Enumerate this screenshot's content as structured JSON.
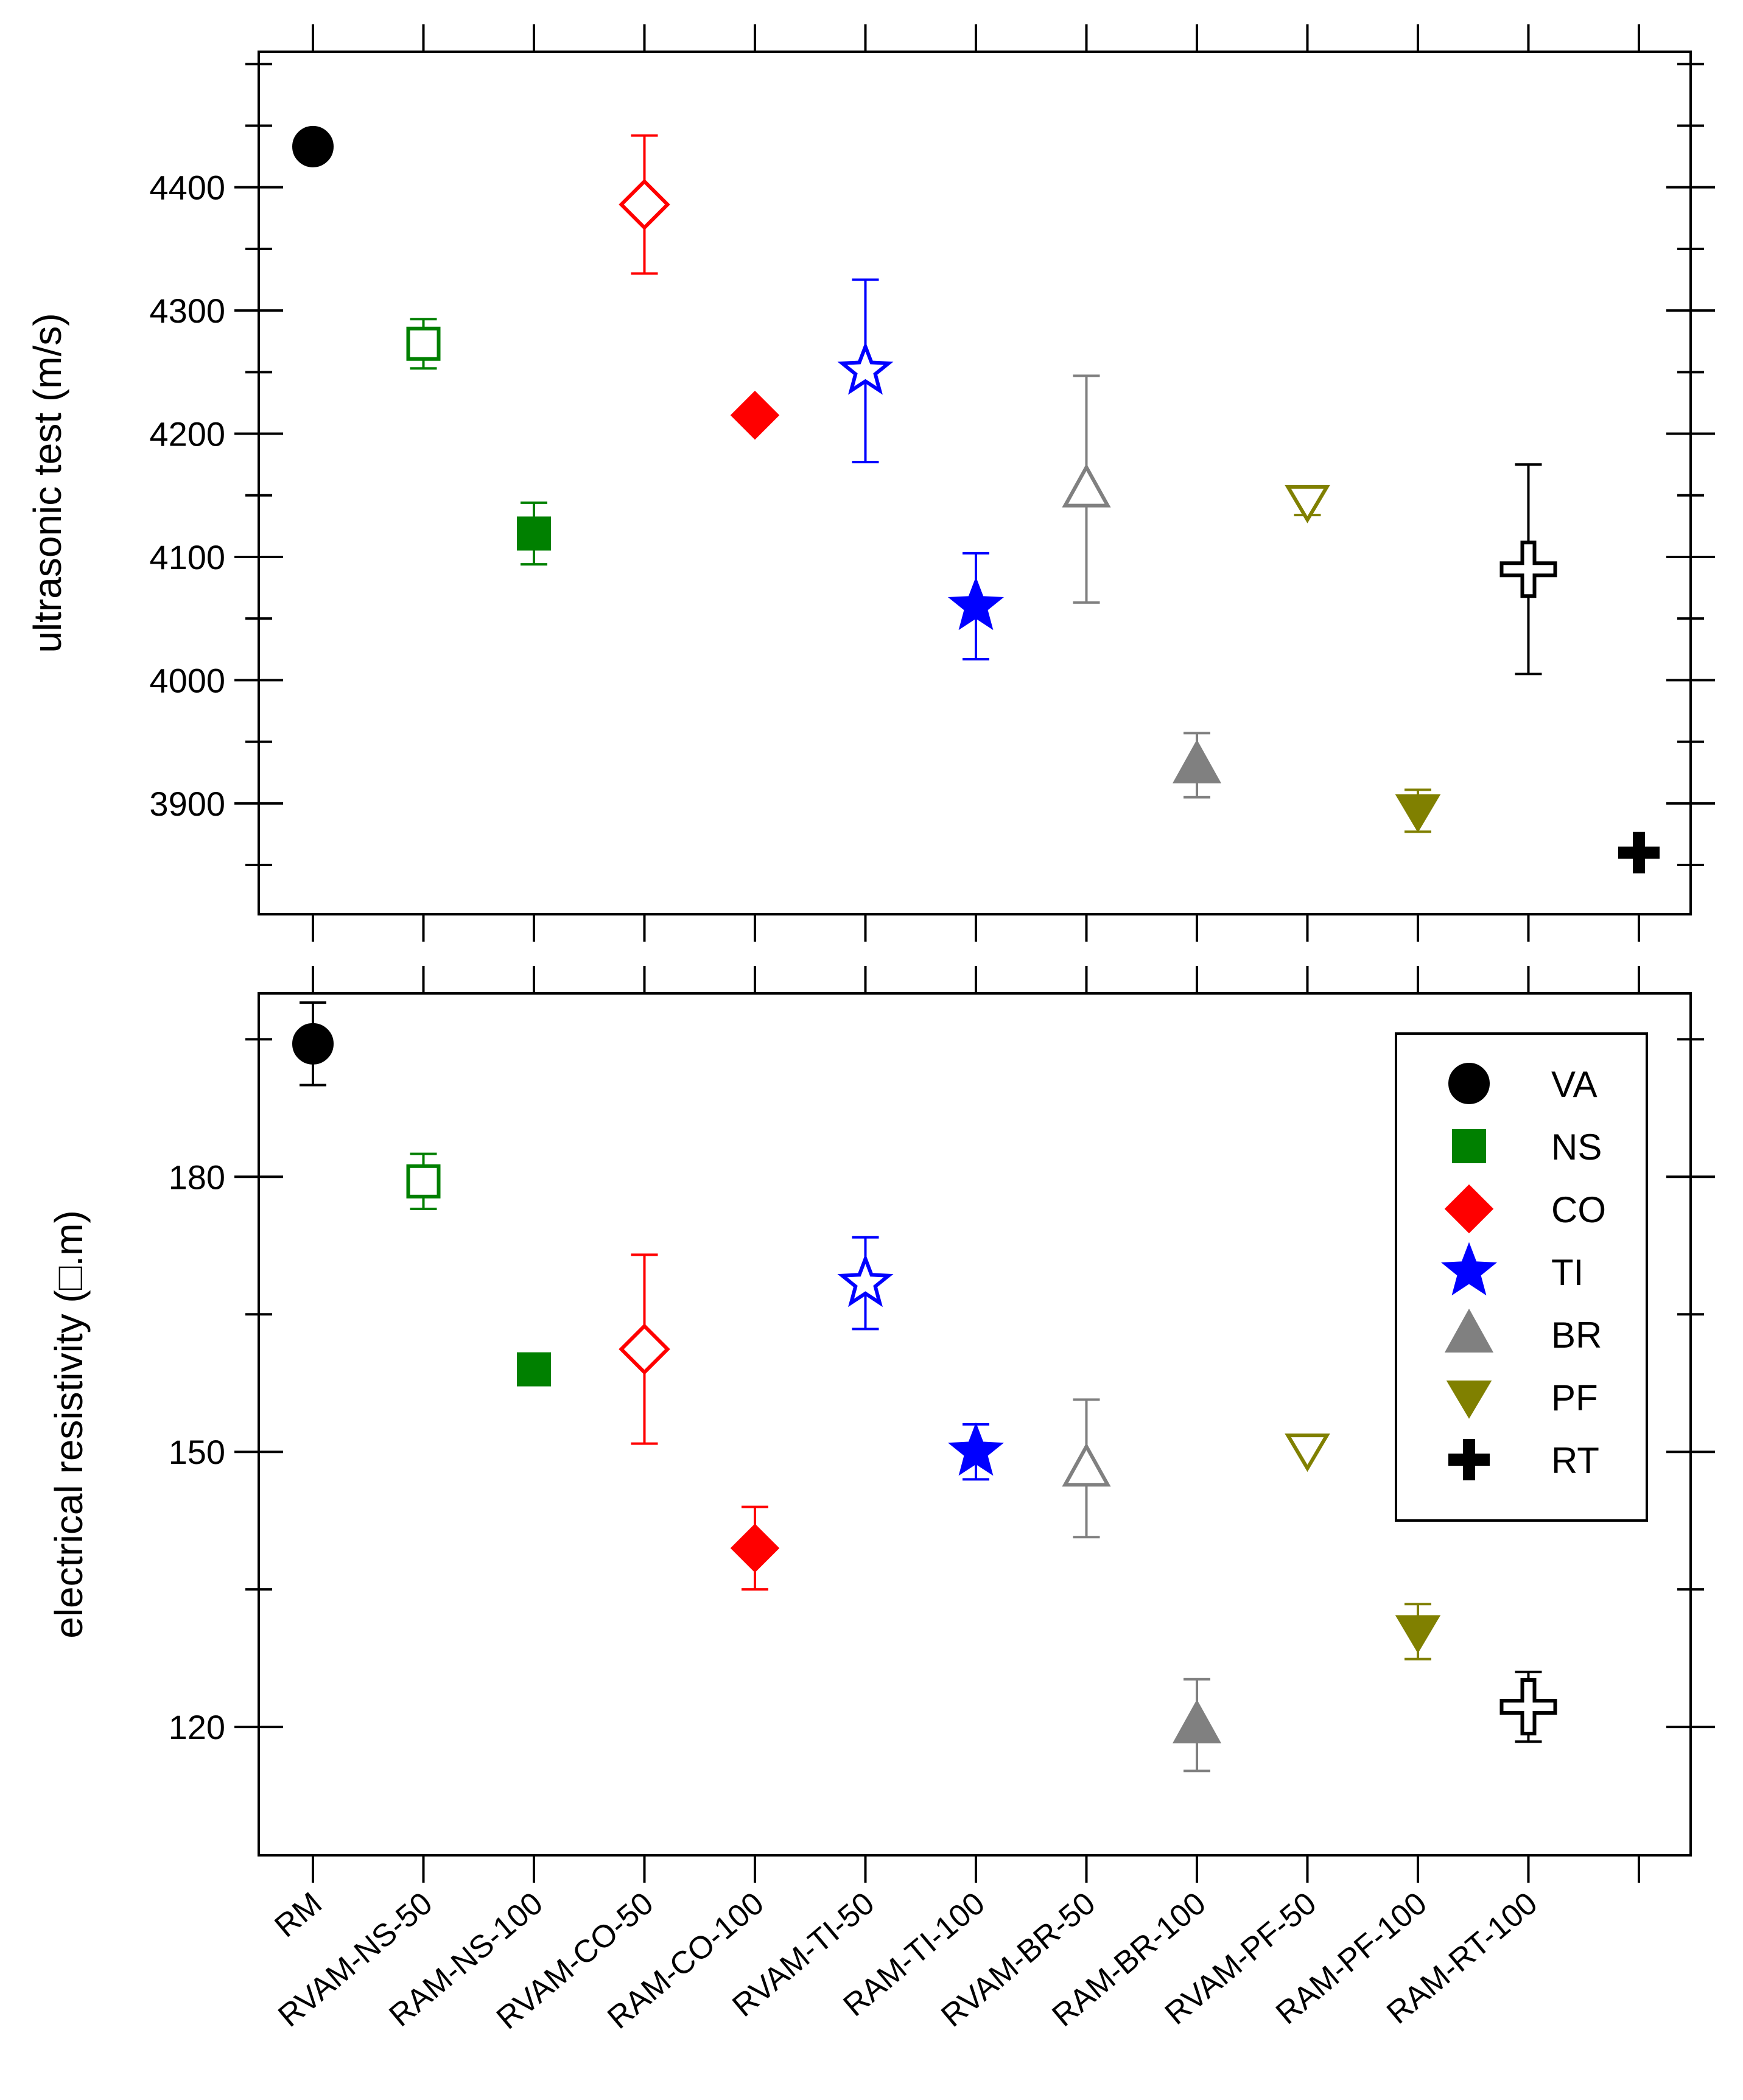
{
  "chart_data": {
    "type": "scatter",
    "categories": [
      "RM",
      "RVAM-NS-50",
      "RAM-NS-100",
      "RVAM-CO-50",
      "RAM-CO-100",
      "RVAM-TI-50",
      "RAM-TI-100",
      "RVAM-BR-50",
      "RAM-BR-100",
      "RVAM-PF-50",
      "RAM-PF-100",
      "RAM-RT-100",
      ""
    ],
    "legend": [
      {
        "name": "VA",
        "marker": "circle",
        "color": "#000000"
      },
      {
        "name": "NS",
        "marker": "square",
        "color": "#008000"
      },
      {
        "name": "CO",
        "marker": "diamond",
        "color": "#ff0000"
      },
      {
        "name": "TI",
        "marker": "star",
        "color": "#0000ff"
      },
      {
        "name": "BR",
        "marker": "triangle-up",
        "color": "#808080"
      },
      {
        "name": "PF",
        "marker": "triangle-down",
        "color": "#808000"
      },
      {
        "name": "RT",
        "marker": "cross",
        "color": "#000000"
      }
    ],
    "panels": [
      {
        "ylabel": "ultrasonic test (m/s)",
        "ylim": [
          3810,
          4510
        ],
        "yticks": [
          3900,
          4000,
          4100,
          4200,
          4300,
          4400
        ],
        "points": [
          {
            "cat": 0,
            "y": 4433,
            "err": 0,
            "marker": "circle",
            "color": "#000000",
            "filled": true
          },
          {
            "cat": 1,
            "y": 4273,
            "err": 20,
            "marker": "square",
            "color": "#008000",
            "filled": false
          },
          {
            "cat": 2,
            "y": 4119,
            "err": 25,
            "marker": "square",
            "color": "#008000",
            "filled": true
          },
          {
            "cat": 3,
            "y": 4386,
            "err": 56,
            "marker": "diamond",
            "color": "#ff0000",
            "filled": false
          },
          {
            "cat": 4,
            "y": 4215,
            "err": 0,
            "marker": "diamond",
            "color": "#ff0000",
            "filled": true
          },
          {
            "cat": 5,
            "y": 4251,
            "err": 74,
            "marker": "star",
            "color": "#0000ff",
            "filled": false
          },
          {
            "cat": 6,
            "y": 4060,
            "err": 43,
            "marker": "star",
            "color": "#0000ff",
            "filled": true
          },
          {
            "cat": 7,
            "y": 4155,
            "err": 92,
            "marker": "triangle-up",
            "color": "#808080",
            "filled": false
          },
          {
            "cat": 8,
            "y": 3931,
            "err": 26,
            "marker": "triangle-up",
            "color": "#808080",
            "filled": true
          },
          {
            "cat": 9,
            "y": 4145,
            "err": 11,
            "marker": "triangle-down",
            "color": "#808000",
            "filled": false
          },
          {
            "cat": 10,
            "y": 3894,
            "err": 17,
            "marker": "triangle-down",
            "color": "#808000",
            "filled": true
          },
          {
            "cat": 11,
            "y": 4090,
            "err": 85,
            "marker": "cross",
            "color": "#000000",
            "filled": false
          },
          {
            "cat": 12,
            "y": 3860,
            "err": 0,
            "marker": "cross",
            "color": "#000000",
            "filled": true
          }
        ]
      },
      {
        "ylabel": "electrical resistivity  (□.m)",
        "ylim": [
          106,
          200
        ],
        "yticks": [
          120,
          150,
          180
        ],
        "points": [
          {
            "cat": 0,
            "y": 194.5,
            "err": 4.5,
            "marker": "circle",
            "color": "#000000",
            "filled": true
          },
          {
            "cat": 1,
            "y": 179.5,
            "err": 3,
            "marker": "square",
            "color": "#008000",
            "filled": false
          },
          {
            "cat": 2,
            "y": 159,
            "err": 0,
            "marker": "square",
            "color": "#008000",
            "filled": true
          },
          {
            "cat": 3,
            "y": 161.2,
            "err": 10.3,
            "marker": "diamond",
            "color": "#ff0000",
            "filled": false
          },
          {
            "cat": 4,
            "y": 139.5,
            "err": 4.5,
            "marker": "diamond",
            "color": "#ff0000",
            "filled": true
          },
          {
            "cat": 5,
            "y": 168.4,
            "err": 5,
            "marker": "star",
            "color": "#0000ff",
            "filled": false
          },
          {
            "cat": 6,
            "y": 150,
            "err": 3,
            "marker": "star",
            "color": "#0000ff",
            "filled": true
          },
          {
            "cat": 7,
            "y": 148.2,
            "err": 7.5,
            "marker": "triangle-up",
            "color": "#808080",
            "filled": false
          },
          {
            "cat": 8,
            "y": 120.2,
            "err": 5,
            "marker": "triangle-up",
            "color": "#808080",
            "filled": true
          },
          {
            "cat": 9,
            "y": 150.2,
            "err": 0,
            "marker": "triangle-down",
            "color": "#808000",
            "filled": false
          },
          {
            "cat": 10,
            "y": 130.4,
            "err": 3,
            "marker": "triangle-down",
            "color": "#808000",
            "filled": true
          },
          {
            "cat": 11,
            "y": 122.2,
            "err": 3.8,
            "marker": "cross",
            "color": "#000000",
            "filled": false
          }
        ]
      }
    ]
  }
}
